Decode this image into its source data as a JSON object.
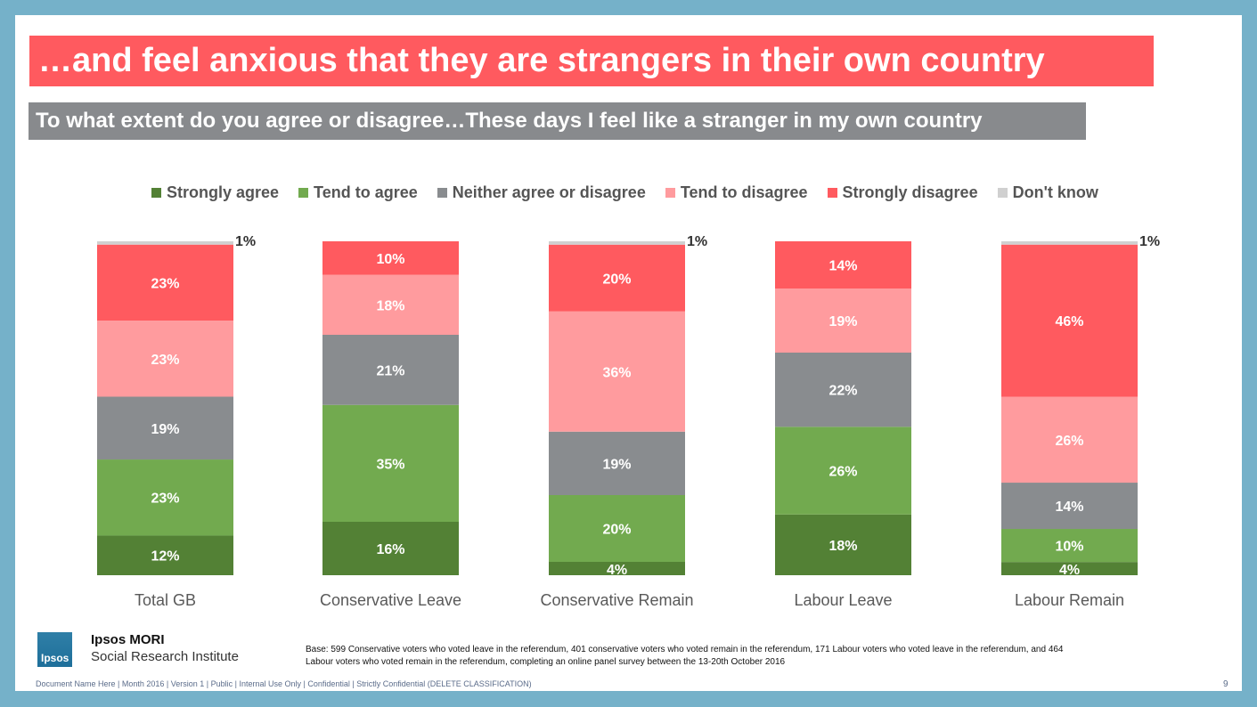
{
  "title": "…and feel anxious that they are strangers in their own country",
  "subtitle": "To what extent do you agree or disagree…These days I feel like a stranger in my own country",
  "chart_data": {
    "type": "bar",
    "stacked": true,
    "categories": [
      "Total GB",
      "Conservative Leave",
      "Conservative Remain",
      "Labour Leave",
      "Labour Remain"
    ],
    "series": [
      {
        "name": "Strongly agree",
        "color": "#538135",
        "values": [
          12,
          16,
          4,
          18,
          4
        ],
        "labels": [
          "12%",
          "16%",
          "4%",
          "18%",
          "4%"
        ]
      },
      {
        "name": "Tend to agree",
        "color": "#72aa4f",
        "values": [
          23,
          35,
          20,
          26,
          10
        ],
        "labels": [
          "23%",
          "35%",
          "20%",
          "26%",
          "10%"
        ]
      },
      {
        "name": "Neither agree or disagree",
        "color": "#898c8f",
        "values": [
          19,
          21,
          19,
          22,
          14
        ],
        "labels": [
          "19%",
          "21%",
          "19%",
          "22%",
          "14%"
        ]
      },
      {
        "name": "Tend to disagree",
        "color": "#ff9b9e",
        "values": [
          23,
          18,
          36,
          19,
          26
        ],
        "labels": [
          "23%",
          "18%",
          "36%",
          "19%",
          "26%"
        ]
      },
      {
        "name": "Strongly disagree",
        "color": "#ff5a5f",
        "values": [
          23,
          10,
          20,
          14,
          46
        ],
        "labels": [
          "23%",
          "10%",
          "20%",
          "14%",
          "46%"
        ]
      },
      {
        "name": "Don't know",
        "color": "#d0d0d0",
        "values": [
          1,
          0,
          1,
          0,
          1
        ],
        "labels": [
          "1%",
          "",
          "1%",
          "",
          "1%"
        ]
      }
    ],
    "ylim": [
      0,
      100
    ],
    "legend_position": "top",
    "grid": false
  },
  "brand": {
    "logo_text": "Ipsos",
    "name": "Ipsos MORI",
    "sub": "Social Research Institute"
  },
  "base_note": "Base: 599 Conservative voters who voted leave in the referendum, 401 conservative voters who voted remain in the referendum, 171 Labour voters who voted leave in the referendum, and 464 Labour voters who voted remain in the referendum, completing an online panel survey between the 13-20th October 2016",
  "footer": "Document Name Here | Month 2016 | Version 1 | Public | Internal Use Only | Confidential | Strictly Confidential (DELETE CLASSIFICATION)",
  "page_number": "9"
}
